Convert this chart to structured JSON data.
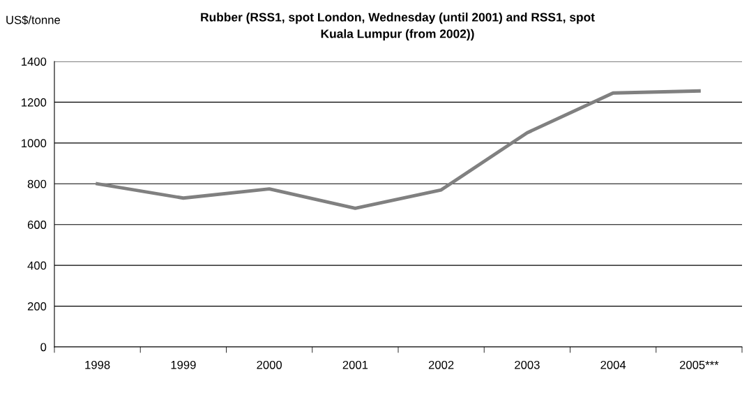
{
  "chart_data": {
    "type": "line",
    "title": "Rubber (RSS1, spot London, Wednesday (until 2001) and RSS1, spot\nKuala Lumpur (from 2002))",
    "ylabel": "US$/tonne",
    "categories": [
      "1998",
      "1999",
      "2000",
      "2001",
      "2002",
      "2003",
      "2004",
      "2005***"
    ],
    "series": [
      {
        "color": "#808080",
        "values": [
          800,
          730,
          775,
          680,
          770,
          1050,
          1245,
          1255
        ]
      }
    ],
    "ylim": [
      0,
      1400
    ],
    "yticks": [
      0,
      200,
      400,
      600,
      800,
      1000,
      1200,
      1400
    ],
    "grid": "y",
    "marker": "none",
    "line_style": "solid",
    "legend": false
  }
}
